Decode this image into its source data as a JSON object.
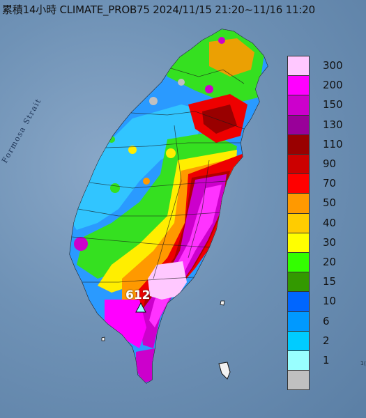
{
  "title": "累積14小時 CLIMATE_PROB75 2024/11/15 21:20~11/16 11:20",
  "sea_label": "Formosa Strait",
  "peak_value": "612",
  "legend": [
    {
      "label": "300",
      "color": "#ffc8ff"
    },
    {
      "label": "200",
      "color": "#ff00ff"
    },
    {
      "label": "150",
      "color": "#cc00cc"
    },
    {
      "label": "130",
      "color": "#990099"
    },
    {
      "label": "110",
      "color": "#990000"
    },
    {
      "label": "90",
      "color": "#cc0000"
    },
    {
      "label": "70",
      "color": "#ff0000"
    },
    {
      "label": "50",
      "color": "#ff9900"
    },
    {
      "label": "40",
      "color": "#ffcc00"
    },
    {
      "label": "30",
      "color": "#ffff00"
    },
    {
      "label": "20",
      "color": "#33ff00"
    },
    {
      "label": "15",
      "color": "#339900"
    },
    {
      "label": "10",
      "color": "#0066ff"
    },
    {
      "label": "6",
      "color": "#0099ff"
    },
    {
      "label": "2",
      "color": "#00ccff"
    },
    {
      "label": "1",
      "color": "#99ffff"
    },
    {
      "label": "",
      "color": "#c0c0c0"
    }
  ],
  "corner_text": "1("
}
